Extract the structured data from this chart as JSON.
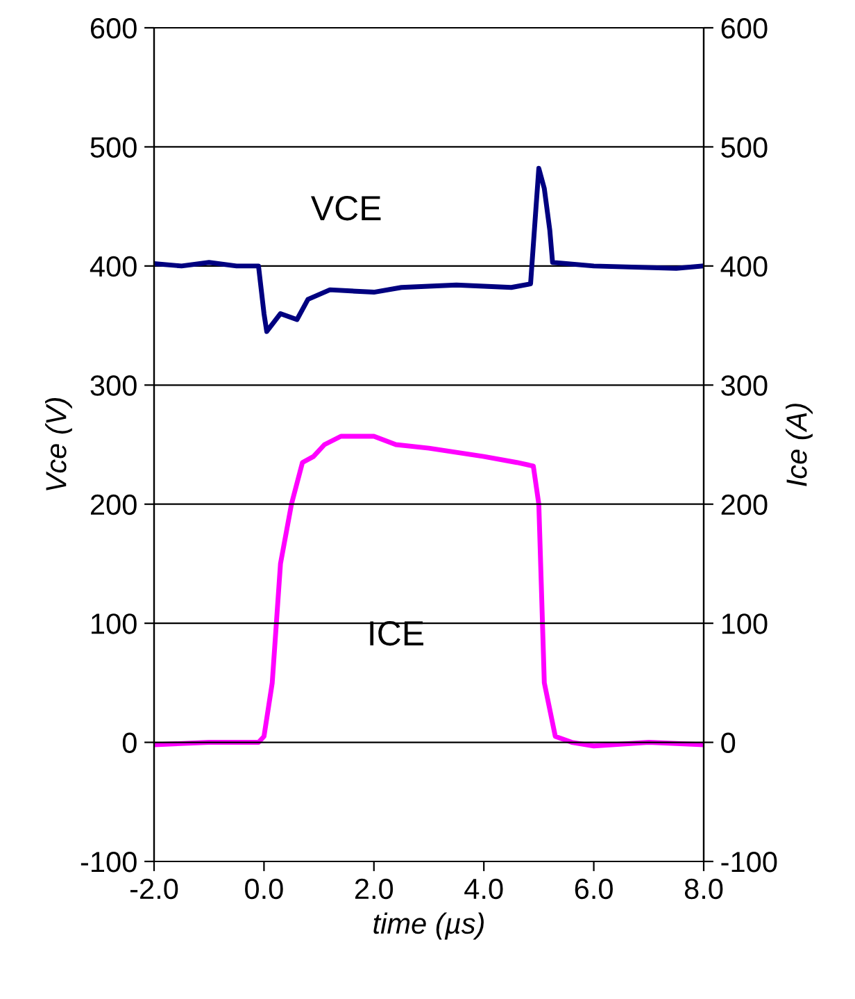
{
  "chart_data": {
    "type": "line",
    "xlabel": "time (µs)",
    "ylabel": "Vce (V)",
    "y2label": "Ice (A)",
    "xlim": [
      -2.0,
      8.0
    ],
    "xticks": [
      {
        "value": -2,
        "label": "-2.0"
      },
      {
        "value": 0,
        "label": "0.0"
      },
      {
        "value": 2,
        "label": "2.0"
      },
      {
        "value": 4,
        "label": "4.0"
      },
      {
        "value": 6,
        "label": "6.0"
      },
      {
        "value": 8,
        "label": "8.0"
      }
    ],
    "ylim": [
      -100,
      600
    ],
    "yticks": [
      -100,
      0,
      100,
      200,
      300,
      400,
      500,
      600
    ],
    "y2lim": [
      -100,
      600
    ],
    "y2ticks": [
      -100,
      0,
      100,
      200,
      300,
      400,
      500,
      600
    ],
    "grid": "y",
    "legend": false,
    "marker": "none",
    "line_style": "solid",
    "series": [
      {
        "color": "#000080",
        "x": [
          -2.0,
          -1.5,
          -1.0,
          -0.5,
          -0.1,
          0.0,
          0.05,
          0.3,
          0.6,
          0.8,
          1.2,
          2.0,
          2.5,
          3.5,
          4.5,
          4.85,
          4.95,
          5.0,
          5.1,
          5.2,
          5.25,
          6.0,
          7.5,
          8.0
        ],
        "values": [
          402,
          400,
          403,
          400,
          400,
          360,
          345,
          360,
          355,
          372,
          380,
          378,
          382,
          384,
          382,
          385,
          450,
          482,
          465,
          430,
          403,
          400,
          398,
          400
        ]
      },
      {
        "color": "#ff00ff",
        "axis": "y2",
        "x": [
          -2.0,
          -1.0,
          -0.1,
          0.0,
          0.15,
          0.3,
          0.5,
          0.7,
          0.9,
          1.1,
          1.4,
          2.0,
          2.4,
          3.0,
          4.0,
          4.6,
          4.9,
          5.0,
          5.1,
          5.3,
          5.6,
          6.0,
          7.0,
          8.0
        ],
        "values": [
          -2,
          0,
          0,
          5,
          50,
          150,
          200,
          235,
          240,
          250,
          257,
          257,
          250,
          247,
          240,
          235,
          232,
          200,
          50,
          5,
          0,
          -3,
          0,
          -2
        ]
      }
    ],
    "annotations": [
      "VCE",
      "ICE"
    ]
  }
}
